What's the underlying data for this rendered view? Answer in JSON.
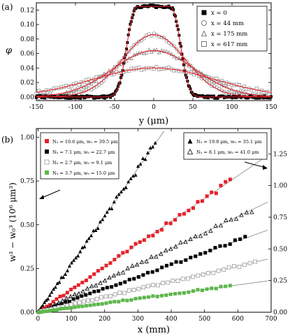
{
  "chart_data": [
    {
      "panel_label": "(a)",
      "type": "scatter",
      "xlabel": "y (μm)",
      "ylabel": "φ",
      "xlim": [
        -150,
        150
      ],
      "ylim": [
        -0.005,
        0.13
      ],
      "xticks": [
        "-150",
        "-100",
        "-50",
        "0",
        "50",
        "100",
        "150"
      ],
      "yticks": [
        "0.00",
        "0.02",
        "0.04",
        "0.06",
        "0.08",
        "0.10",
        "0.12"
      ],
      "legend_position": "top-right",
      "series": [
        {
          "name": "x = 0",
          "marker": "filled-square",
          "color": "#000000",
          "peak": 0.125,
          "sigma": 26,
          "flat": 20
        },
        {
          "name": "x = 44 mm",
          "marker": "open-circle",
          "color": "#8a8a8a",
          "peak": 0.086,
          "sigma": 40
        },
        {
          "name": "x = 175 mm",
          "marker": "open-triangle",
          "color": "#8a8a8a",
          "peak": 0.064,
          "sigma": 52
        },
        {
          "name": "x = 617 mm",
          "marker": "open-square",
          "color": "#9a9a9a",
          "peak": 0.04,
          "sigma": 78
        }
      ],
      "fit_color": "#e8202a"
    },
    {
      "panel_label": "(b)",
      "type": "scatter",
      "xlabel": "x (mm)",
      "ylabel": "w³ − w₀³ (10⁶ μm³)",
      "xlim": [
        -5,
        700
      ],
      "ylim_left": [
        0,
        1.05
      ],
      "ylim_right": [
        0,
        1.45
      ],
      "xticks": [
        "0",
        "100",
        "200",
        "300",
        "400",
        "500",
        "600",
        "700"
      ],
      "yticks_left": [
        "0.00",
        "0.25",
        "0.50",
        "0.75",
        "1.00"
      ],
      "yticks_right": [
        "0.00",
        "0.25",
        "0.50",
        "0.75",
        "1.00",
        "1.25"
      ],
      "legend_left": [
        {
          "name": "N₀ = 10.6 μm,  w₀ = 39.5 μm",
          "marker": "filled-square",
          "color": "#e8202a"
        },
        {
          "name": "N₀ = 7.1 μm,  w₀ = 22.7 μm",
          "marker": "filled-square",
          "color": "#000000"
        },
        {
          "name": "N₀ = 2.7 μm,  w₀ = 9.1 μm",
          "marker": "open-square",
          "color": "#9a9a9a"
        },
        {
          "name": "N₀ = 3.7 μm,  w₀ = 15.0 μm",
          "marker": "filled-square",
          "color": "#5cb84a"
        }
      ],
      "legend_right": [
        {
          "name": "N₀ = 19.8 μm,  w₀ = 35.1 μm",
          "marker": "filled-triangle",
          "color": "#000000"
        },
        {
          "name": "N₀ = 8.1 μm,  w₀ = 41.0 μm",
          "marker": "open-triangle",
          "color": "#000000"
        }
      ],
      "series": [
        {
          "name": "N₀ = 19.8 μm, w₀ = 35.1 μm",
          "axis": "right",
          "marker": "filled-triangle",
          "color": "#000000",
          "slope": 0.00378,
          "xmax": 350
        },
        {
          "name": "N₀ = 10.6 μm, w₀ = 39.5 μm",
          "axis": "left",
          "marker": "filled-square",
          "color": "#e8202a",
          "slope": 0.0013,
          "xmax": 575
        },
        {
          "name": "N₀ = 8.1 μm, w₀ = 41.0 μm",
          "axis": "right",
          "marker": "open-triangle",
          "color": "#000000",
          "slope": 0.00126,
          "xmax": 640
        },
        {
          "name": "N₀ = 7.1 μm, w₀ = 22.7 μm",
          "axis": "left",
          "marker": "filled-square",
          "color": "#000000",
          "slope": 0.00068,
          "xmax": 620
        },
        {
          "name": "N₀ = 2.7 μm, w₀ = 9.1 μm",
          "axis": "left",
          "marker": "open-square",
          "color": "#9a9a9a",
          "slope": 0.00044,
          "xmax": 650
        },
        {
          "name": "N₀ = 3.7 μm, w₀ = 15.0 μm",
          "axis": "left",
          "marker": "filled-square",
          "color": "#5cb84a",
          "slope": 0.00026,
          "xmax": 575
        }
      ],
      "arrows": [
        {
          "points_to": "left-axis",
          "near_legend": "legend_left"
        },
        {
          "points_to": "right-axis",
          "near_legend": "legend_right"
        }
      ]
    }
  ]
}
